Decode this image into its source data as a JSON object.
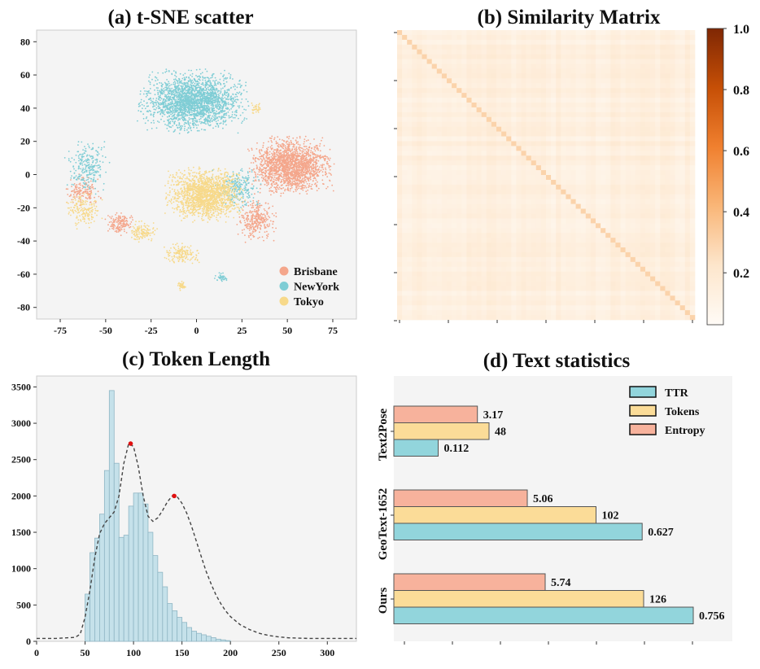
{
  "chart_data": [
    {
      "id": "tsne",
      "type": "scatter",
      "title": "(a) t-SNE scatter",
      "xlim": [
        -88,
        88
      ],
      "ylim": [
        -87,
        87
      ],
      "x_ticks": [
        -75,
        -50,
        -25,
        0,
        25,
        50,
        75
      ],
      "y_ticks": [
        -80,
        -60,
        -40,
        -20,
        0,
        20,
        40,
        60,
        80
      ],
      "legend_position": "bottom-right",
      "series": [
        {
          "name": "Brisbane",
          "color": "#f4a68b",
          "clusters": [
            [
              52,
              5,
              17,
              13,
              1800
            ],
            [
              33,
              -28,
              8,
              10,
              300
            ],
            [
              -42,
              -30,
              6,
              5,
              150
            ],
            [
              -62,
              -10,
              7,
              8,
              150
            ]
          ]
        },
        {
          "name": "NewYork",
          "color": "#7fcdd5",
          "clusters": [
            [
              -2,
              44,
              22,
              14,
              2200
            ],
            [
              22,
              -8,
              10,
              10,
              250
            ],
            [
              -60,
              5,
              9,
              12,
              250
            ],
            [
              14,
              -62,
              3,
              2,
              40
            ]
          ]
        },
        {
          "name": "Tokyo",
          "color": "#f7d98a",
          "clusters": [
            [
              5,
              -12,
              16,
              12,
              1600
            ],
            [
              -30,
              -35,
              6,
              5,
              120
            ],
            [
              -8,
              -48,
              7,
              5,
              150
            ],
            [
              -62,
              -22,
              8,
              8,
              160
            ],
            [
              -8,
              -67,
              2,
              2,
              40
            ],
            [
              33,
              40,
              2,
              3,
              30
            ]
          ]
        }
      ]
    },
    {
      "id": "simmatrix",
      "type": "heatmap",
      "title": "(b) Similarity Matrix",
      "size": 60,
      "offdiag_range": [
        0.08,
        0.2
      ],
      "diagonal_value": 0.3,
      "colorbar": {
        "min": 0.03,
        "max": 1.0,
        "ticks": [
          0.2,
          0.4,
          0.6,
          0.8,
          1.0
        ],
        "tick_labels": [
          "0.2",
          "0.4",
          "0.6",
          "0.8",
          "1.0"
        ],
        "colors": [
          "#fffbf6",
          "#fde6cc",
          "#f9b678",
          "#f0802f",
          "#c64f06",
          "#7f2704"
        ]
      }
    },
    {
      "id": "tokenlen",
      "type": "bar",
      "title": "(c) Token Length",
      "xlim": [
        0,
        330
      ],
      "ylim": [
        0,
        3650
      ],
      "x_ticks": [
        0,
        50,
        100,
        150,
        200,
        250,
        300
      ],
      "y_ticks": [
        0,
        500,
        1000,
        1500,
        2000,
        2500,
        3000,
        3500
      ],
      "bin_start": 50,
      "bin_width": 5,
      "counts": [
        650,
        1220,
        1420,
        1750,
        2350,
        3450,
        2450,
        1430,
        1460,
        1860,
        2040,
        2040,
        1890,
        1500,
        1180,
        950,
        750,
        520,
        420,
        330,
        260,
        190,
        140,
        110,
        90,
        70,
        50,
        30,
        20,
        10
      ],
      "kde": [
        [
          0,
          40
        ],
        [
          20,
          40
        ],
        [
          40,
          55
        ],
        [
          45,
          100
        ],
        [
          50,
          330
        ],
        [
          55,
          700
        ],
        [
          60,
          1150
        ],
        [
          65,
          1480
        ],
        [
          70,
          1620
        ],
        [
          75,
          1700
        ],
        [
          80,
          1780
        ],
        [
          85,
          2000
        ],
        [
          90,
          2450
        ],
        [
          95,
          2720
        ],
        [
          100,
          2680
        ],
        [
          105,
          2400
        ],
        [
          110,
          2000
        ],
        [
          115,
          1720
        ],
        [
          120,
          1650
        ],
        [
          125,
          1700
        ],
        [
          130,
          1800
        ],
        [
          135,
          1920
        ],
        [
          140,
          2000
        ],
        [
          145,
          1990
        ],
        [
          150,
          1900
        ],
        [
          155,
          1760
        ],
        [
          160,
          1580
        ],
        [
          165,
          1370
        ],
        [
          170,
          1160
        ],
        [
          175,
          960
        ],
        [
          180,
          790
        ],
        [
          185,
          640
        ],
        [
          190,
          520
        ],
        [
          195,
          420
        ],
        [
          200,
          340
        ],
        [
          210,
          230
        ],
        [
          220,
          160
        ],
        [
          230,
          110
        ],
        [
          240,
          80
        ],
        [
          250,
          60
        ],
        [
          260,
          48
        ],
        [
          280,
          40
        ],
        [
          330,
          40
        ]
      ],
      "peaks": [
        [
          97,
          2720
        ],
        [
          142,
          2000
        ]
      ]
    },
    {
      "id": "textstats",
      "type": "bar",
      "orientation": "horizontal",
      "title": "(d) Text statistics",
      "groups": [
        "Text2Pose",
        "GeoText-1652",
        "Ours"
      ],
      "series": [
        {
          "name": "Entropy",
          "color": "#f7b29c",
          "values": [
            3.17,
            5.06,
            5.74
          ],
          "labels": [
            "3.17",
            "5.06",
            "5.74"
          ]
        },
        {
          "name": "Tokens",
          "color": "#fbdc98",
          "values": [
            48,
            102,
            126
          ],
          "labels": [
            "48",
            "102",
            "126"
          ]
        },
        {
          "name": "TTR",
          "color": "#92d5dc",
          "values": [
            0.112,
            0.627,
            0.756
          ],
          "labels": [
            "0.112",
            "0.627",
            "0.756"
          ]
        }
      ],
      "legend_order": [
        "TTR",
        "Tokens",
        "Entropy"
      ],
      "legend_position": "top-right"
    }
  ]
}
